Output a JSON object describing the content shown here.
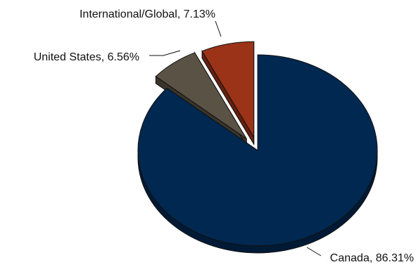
{
  "chart_data": {
    "type": "pie",
    "title": "",
    "legend": "none",
    "exploded": true,
    "three_d": true,
    "slices": [
      {
        "label": "Canada, 86.31%",
        "value": 86.31,
        "color": "#002850",
        "side_color": "#001a36"
      },
      {
        "label": "United States, 6.56%",
        "value": 6.56,
        "color": "#5a5244",
        "side_color": "#3a342b"
      },
      {
        "label": "International/Global, 7.13%",
        "value": 7.13,
        "color": "#9a3318",
        "side_color": "#66200e"
      }
    ]
  }
}
